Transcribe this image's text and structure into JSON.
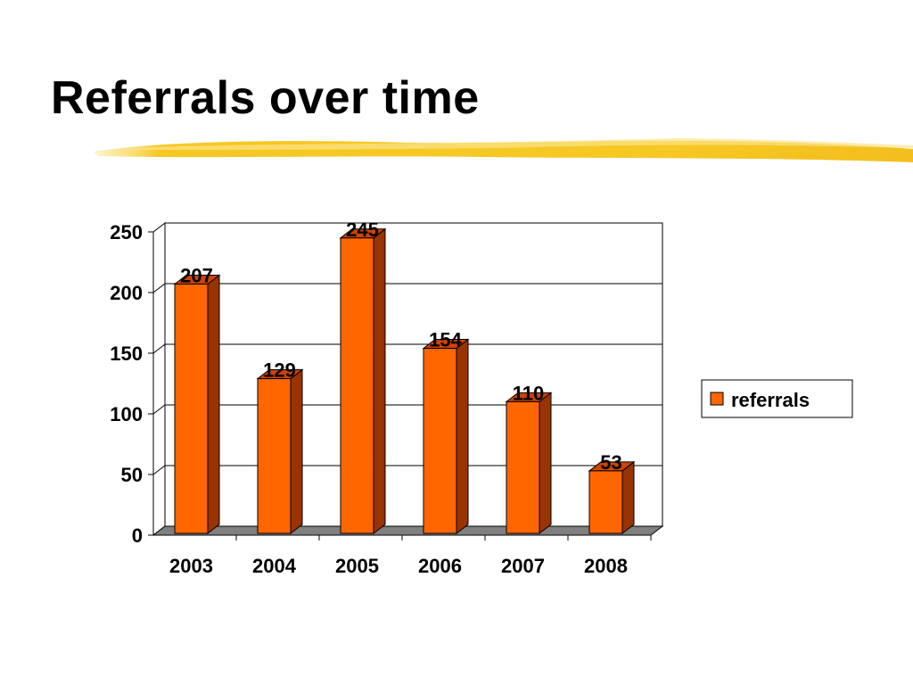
{
  "slide": {
    "title": "Referrals over time"
  },
  "colors": {
    "bar_front": "#ff6600",
    "bar_side": "#993300",
    "bar_top": "#cc4400",
    "floor": "#808080",
    "brush": "#f5c518"
  },
  "chart_data": {
    "type": "bar",
    "categories": [
      "2003",
      "2004",
      "2005",
      "2006",
      "2007",
      "2008"
    ],
    "series": [
      {
        "name": "referrals",
        "values": [
          207,
          129,
          245,
          154,
          110,
          53
        ]
      }
    ],
    "title": "",
    "xlabel": "",
    "ylabel": "",
    "ylim": [
      0,
      250
    ],
    "yticks": [
      "0",
      "50",
      "100",
      "150",
      "200",
      "250"
    ],
    "data_labels": [
      "207",
      "129",
      "245",
      "154",
      "110",
      "53"
    ],
    "grid": true,
    "legend": "right",
    "style": "3d"
  }
}
